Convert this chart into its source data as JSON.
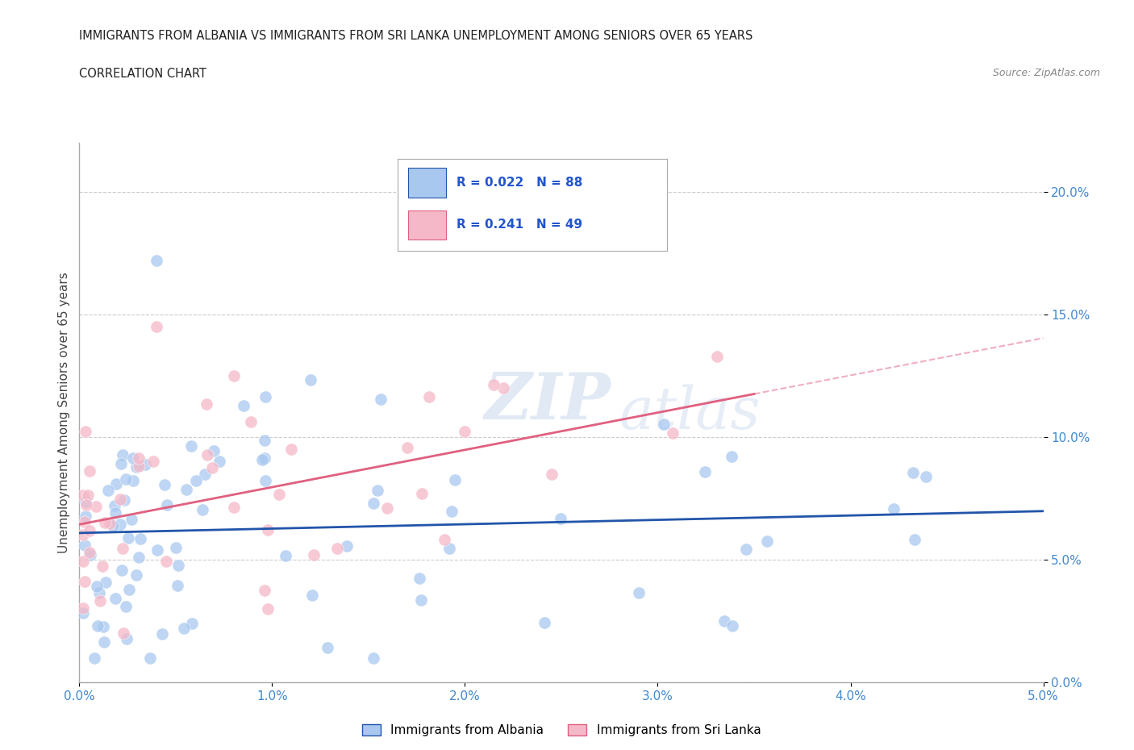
{
  "title_line1": "IMMIGRANTS FROM ALBANIA VS IMMIGRANTS FROM SRI LANKA UNEMPLOYMENT AMONG SENIORS OVER 65 YEARS",
  "title_line2": "CORRELATION CHART",
  "source_text": "Source: ZipAtlas.com",
  "ylabel": "Unemployment Among Seniors over 65 years",
  "watermark_zip": "ZIP",
  "watermark_atlas": "atlas",
  "albania_R": 0.022,
  "albania_N": 88,
  "srilanka_R": 0.241,
  "srilanka_N": 49,
  "albania_color": "#a8c8f0",
  "srilanka_color": "#f5b8c8",
  "albania_line_color": "#2255aa",
  "srilanka_line_color": "#e06080",
  "legend_label_albania": "Immigrants from Albania",
  "legend_label_srilanka": "Immigrants from Sri Lanka",
  "xlim": [
    0.0,
    0.05
  ],
  "ylim": [
    0.0,
    0.22
  ],
  "xticks": [
    0.0,
    0.01,
    0.02,
    0.03,
    0.04,
    0.05
  ],
  "yticks": [
    0.0,
    0.05,
    0.1,
    0.15,
    0.2
  ],
  "legend_R_color": "#2255cc",
  "legend_N_color": "#2255cc",
  "title_color": "#222222",
  "source_color": "#888888",
  "tick_label_color": "#4488cc",
  "grid_color": "#cccccc",
  "grid_linestyle": "--",
  "grid_linewidth": 0.8
}
